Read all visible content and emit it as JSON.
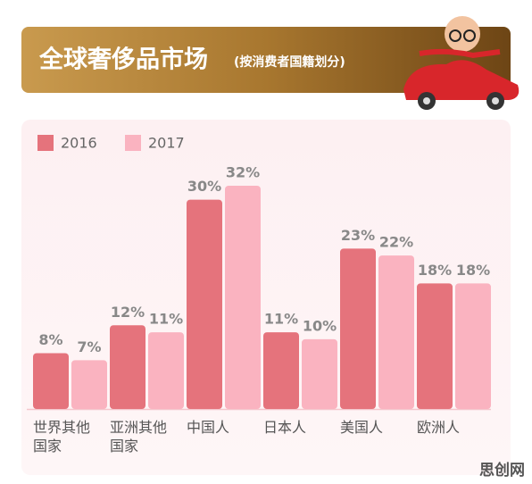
{
  "chart_data": {
    "type": "bar",
    "title": "全球奢侈品市场",
    "subtitle": "(按消费者国籍划分)",
    "categories": [
      "世界其他国家",
      "亚洲其他国家",
      "中国人",
      "日本人",
      "美国人",
      "欧洲人"
    ],
    "series": [
      {
        "name": "2016",
        "color": "#e5737c",
        "values": [
          8,
          12,
          30,
          11,
          23,
          18
        ],
        "value_labels": [
          "8%",
          "12%",
          "30%",
          "11%",
          "23%",
          "18%"
        ]
      },
      {
        "name": "2017",
        "color": "#fab3c0",
        "values": [
          7,
          11,
          32,
          10,
          22,
          18
        ],
        "value_labels": [
          "7%",
          "11%",
          "32%",
          "10%",
          "22%",
          "18%"
        ]
      }
    ],
    "watermark": "思创网"
  }
}
